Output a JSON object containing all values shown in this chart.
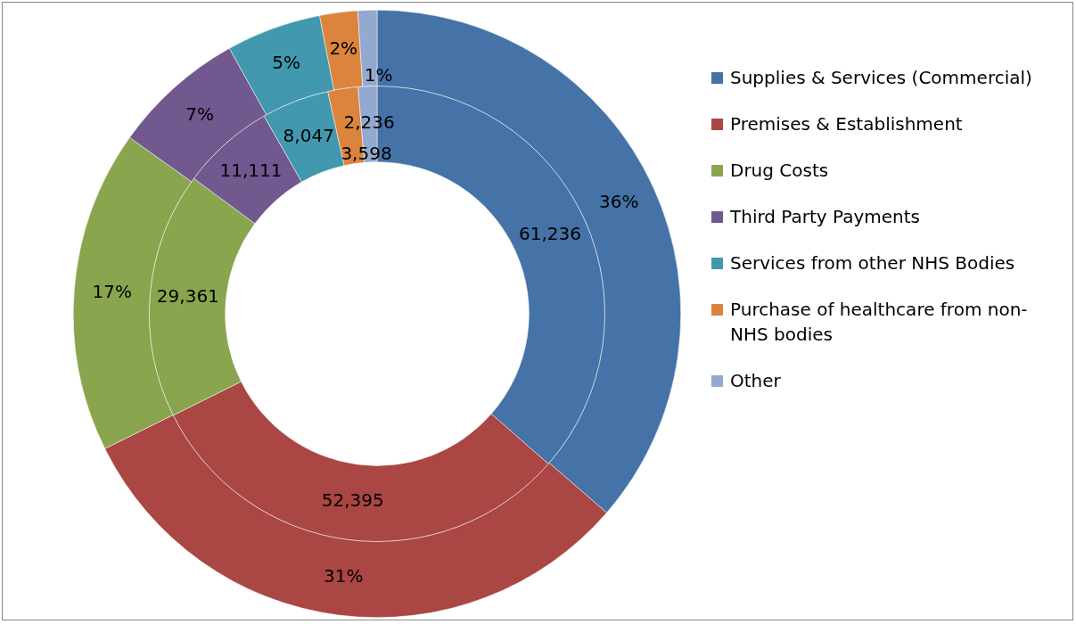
{
  "chart_data": {
    "type": "donut",
    "categories": [
      "Supplies & Services (Commercial)",
      "Premises & Establishment",
      "Drug Costs",
      "Third Party Payments",
      "Services from other NHS Bodies",
      "Purchase of healthcare from non-NHS bodies",
      "Other"
    ],
    "colors": [
      "#4572a7",
      "#aa4643",
      "#89a54e",
      "#71588f",
      "#4198af",
      "#db843d",
      "#93a9cf"
    ],
    "series": [
      {
        "values": [
          36,
          31,
          17,
          7,
          5,
          2,
          1
        ],
        "value_labels": [
          "36%",
          "31%",
          "17%",
          "7%",
          "5%",
          "2%",
          "1%"
        ]
      },
      {
        "values": [
          61236,
          52395,
          29361,
          11111,
          8047,
          3598,
          2236
        ],
        "value_labels": [
          "61,236",
          "52,395",
          "29,361",
          "11,111",
          "8,047",
          "3,598",
          "2,236"
        ]
      }
    ],
    "legend": "right"
  }
}
